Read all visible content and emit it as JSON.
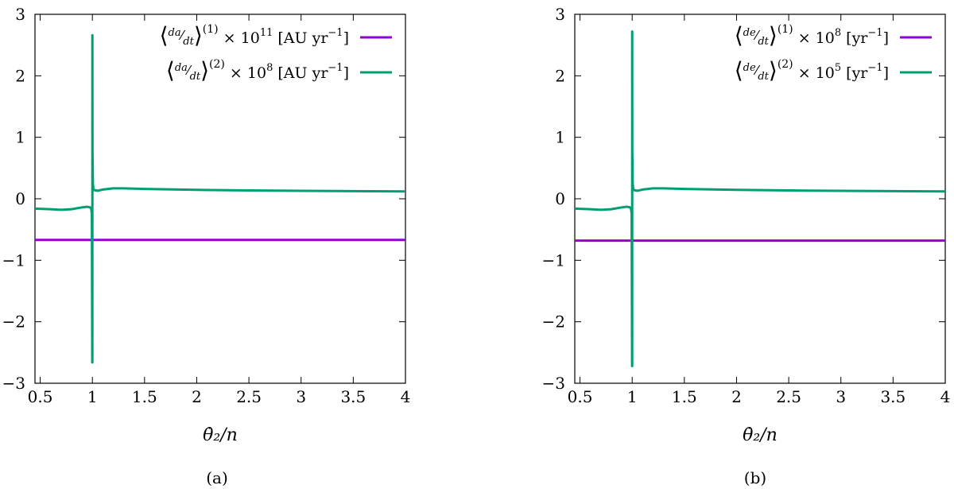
{
  "chart_data": [
    {
      "type": "line",
      "caption": "(a)",
      "xlabel": "θ̇₂/n",
      "ylabel": "",
      "xlim": [
        0.45,
        4.0
      ],
      "ylim": [
        -3,
        3
      ],
      "xticks": [
        "0.5",
        "1",
        "1.5",
        "2",
        "2.5",
        "3",
        "3.5",
        "4"
      ],
      "yticks": [
        "−3",
        "−2",
        "−1",
        "0",
        "1",
        "2",
        "3"
      ],
      "grid": false,
      "legend_position": "top-right",
      "series": [
        {
          "name": "⟨da/dt⟩^(1) × 10^11 [AU yr⁻¹]",
          "color": "#9400d3",
          "x": [
            0.45,
            4.0
          ],
          "y": [
            -0.67,
            -0.67
          ]
        },
        {
          "name": "⟨da/dt⟩^(2) × 10^8 [AU yr⁻¹]",
          "color": "#009e73",
          "x": [
            0.45,
            0.6,
            0.7,
            0.8,
            0.9,
            0.95,
            0.98,
            0.99,
            0.995,
            0.999,
            1.0,
            1.0,
            1.001,
            1.005,
            1.01,
            1.02,
            1.05,
            1.1,
            1.2,
            1.3,
            1.5,
            2.0,
            2.5,
            3.0,
            3.5,
            4.0
          ],
          "y": [
            -0.16,
            -0.17,
            -0.18,
            -0.17,
            -0.14,
            -0.13,
            -0.14,
            -0.17,
            -0.25,
            -2.66,
            -2.66,
            2.66,
            0.8,
            0.25,
            0.16,
            0.14,
            0.13,
            0.15,
            0.17,
            0.17,
            0.16,
            0.145,
            0.135,
            0.13,
            0.125,
            0.12
          ]
        }
      ]
    },
    {
      "type": "line",
      "caption": "(b)",
      "xlabel": "θ̇₂/n",
      "ylabel": "",
      "xlim": [
        0.45,
        4.0
      ],
      "ylim": [
        -3,
        3
      ],
      "xticks": [
        "0.5",
        "1",
        "1.5",
        "2",
        "2.5",
        "3",
        "3.5",
        "4"
      ],
      "yticks": [
        "−3",
        "−2",
        "−1",
        "0",
        "1",
        "2",
        "3"
      ],
      "grid": false,
      "legend_position": "top-right",
      "series": [
        {
          "name": "⟨de/dt⟩^(1) × 10^8 [yr⁻¹]",
          "color": "#9400d3",
          "x": [
            0.45,
            4.0
          ],
          "y": [
            -0.68,
            -0.68
          ]
        },
        {
          "name": "⟨de/dt⟩^(2) × 10^5 [yr⁻¹]",
          "color": "#009e73",
          "x": [
            0.45,
            0.6,
            0.7,
            0.8,
            0.9,
            0.95,
            0.98,
            0.99,
            0.995,
            0.999,
            1.0,
            1.0,
            1.001,
            1.005,
            1.01,
            1.02,
            1.05,
            1.1,
            1.2,
            1.3,
            1.5,
            2.0,
            2.5,
            3.0,
            3.5,
            4.0
          ],
          "y": [
            -0.16,
            -0.17,
            -0.18,
            -0.17,
            -0.14,
            -0.13,
            -0.14,
            -0.17,
            -0.25,
            -2.72,
            -2.72,
            2.72,
            0.8,
            0.25,
            0.16,
            0.14,
            0.13,
            0.15,
            0.17,
            0.17,
            0.16,
            0.145,
            0.135,
            0.13,
            0.125,
            0.12
          ]
        }
      ]
    }
  ],
  "legend_text": [
    {
      "l1": {
        "top": "da",
        "bottom": "dt",
        "sup": "(1)",
        "mult": "× 10",
        "exp": "11",
        "unit": "[AU yr",
        "unit_exp": "−1",
        "close": "]"
      },
      "l2": {
        "top": "da",
        "bottom": "dt",
        "sup": "(2)",
        "mult": "× 10",
        "exp": "8",
        "unit": "[AU yr",
        "unit_exp": "−1",
        "close": "]"
      }
    },
    {
      "l1": {
        "top": "de",
        "bottom": "dt",
        "sup": "(1)",
        "mult": "× 10",
        "exp": "8",
        "unit": "[yr",
        "unit_exp": "−1",
        "close": "]"
      },
      "l2": {
        "top": "de",
        "bottom": "dt",
        "sup": "(2)",
        "mult": "× 10",
        "exp": "5",
        "unit": "[yr",
        "unit_exp": "−1",
        "close": "]"
      }
    }
  ]
}
